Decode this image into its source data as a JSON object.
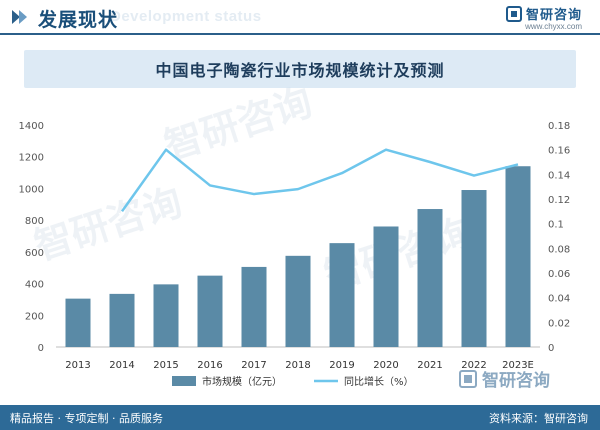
{
  "header": {
    "title": "发展现状",
    "subtitle": "Development status",
    "brand_name": "智研咨询",
    "brand_url": "www.chyxx.com"
  },
  "chart_data": {
    "type": "bar",
    "title": "中国电子陶瓷行业市场规模统计及预测",
    "categories": [
      "2013",
      "2014",
      "2015",
      "2016",
      "2017",
      "2018",
      "2019",
      "2020",
      "2021",
      "2022",
      "2023E"
    ],
    "series": [
      {
        "name": "市场规模（亿元）",
        "type": "bar",
        "axis": "left",
        "values": [
          305,
          335,
          395,
          450,
          505,
          575,
          655,
          760,
          870,
          990,
          1140
        ]
      },
      {
        "name": "同比增长（%）",
        "type": "line",
        "axis": "right",
        "values": [
          null,
          0.11,
          0.16,
          0.131,
          0.124,
          0.128,
          0.141,
          0.16,
          0.15,
          0.139,
          0.148
        ]
      }
    ],
    "y_left": {
      "min": 0,
      "max": 1400,
      "ticks": [
        "0",
        "200",
        "400",
        "600",
        "800",
        "1000",
        "1200",
        "1400"
      ]
    },
    "y_right": {
      "min": 0,
      "max": 0.18,
      "ticks": [
        "0",
        "0.02",
        "0.04",
        "0.06",
        "0.08",
        "0.1",
        "0.12",
        "0.14",
        "0.16",
        "0.18"
      ]
    },
    "grid": false,
    "legend_position": "bottom",
    "colors": {
      "bar": "#5a8aa6",
      "line": "#6ec6ec"
    }
  },
  "footer": {
    "left": "精品报告 · 专项定制 · 品质服务",
    "right": "资料来源：智研咨询"
  }
}
